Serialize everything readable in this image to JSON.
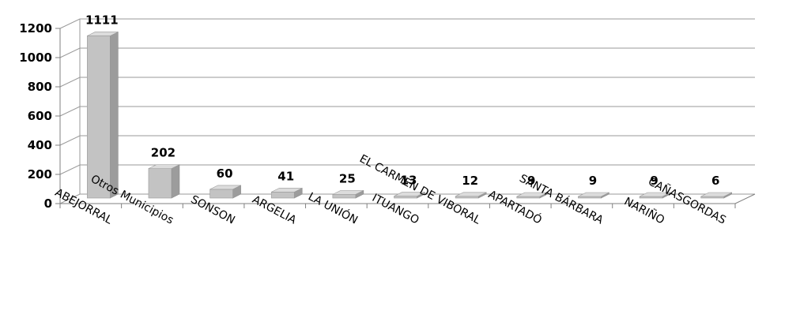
{
  "chart_data": {
    "type": "bar",
    "categories": [
      "ABEJORRAL",
      "Otros Municipios",
      "SONSON",
      "ARGELIA",
      "LA UNIÓN",
      "ITUANGO",
      "EL CARMEN DE VIBORAL",
      "APARTADÓ",
      "SANTA BÁRBARA",
      "NARIÑO",
      "CAÑASGORDAS"
    ],
    "values": [
      1111,
      202,
      60,
      41,
      25,
      13,
      12,
      9,
      9,
      9,
      6
    ],
    "data_labels": [
      "1111",
      "202",
      "60",
      "41",
      "25",
      "13",
      "12",
      "9",
      "9",
      "9",
      "6"
    ],
    "yticks": [
      "0",
      "200",
      "400",
      "600",
      "800",
      "1000",
      "1200"
    ],
    "ylim": [
      0,
      1200
    ],
    "grid": true,
    "legend": "none",
    "style": "3d-column",
    "colors": {
      "bar_front": "#c3c3c3",
      "bar_side": "#9c9c9c",
      "bar_top": "#dcdcdc",
      "grid": "#9a9a9a"
    }
  }
}
